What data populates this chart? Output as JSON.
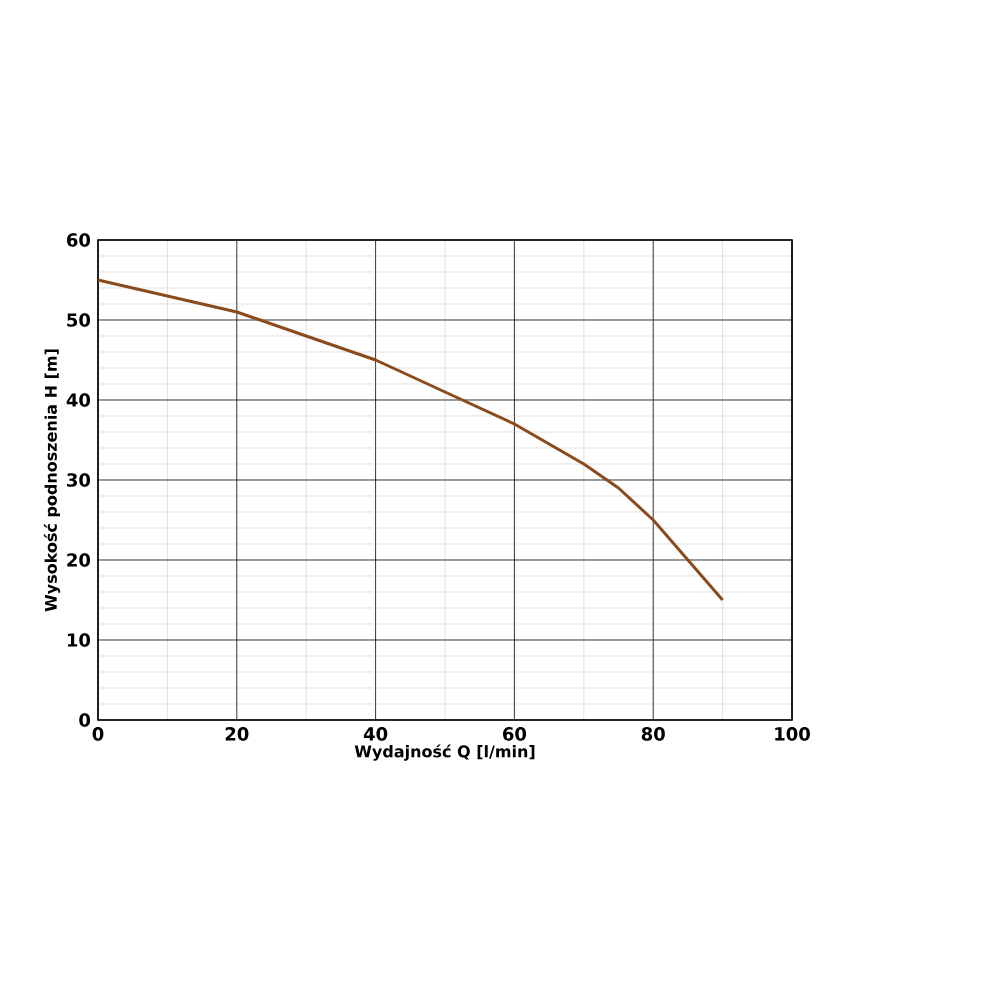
{
  "chart_data": {
    "type": "line",
    "xlabel": "Wydajność Q [l/min]",
    "ylabel": "Wysokość podnoszenia H [m]",
    "x": [
      0,
      10,
      20,
      30,
      40,
      50,
      60,
      70,
      75,
      80,
      85,
      90
    ],
    "series": [
      {
        "color": "#8b4a1c",
        "values": [
          55,
          53,
          51,
          48,
          45,
          41,
          37,
          32,
          29,
          25,
          20,
          15
        ]
      }
    ],
    "xlim": [
      0,
      100
    ],
    "ylim": [
      0,
      60
    ],
    "xticks": [
      0,
      20,
      40,
      60,
      80,
      100
    ],
    "yticks": [
      0,
      10,
      20,
      30,
      40,
      50,
      60
    ],
    "grid": true,
    "marker": "none",
    "line_style": "solid"
  }
}
